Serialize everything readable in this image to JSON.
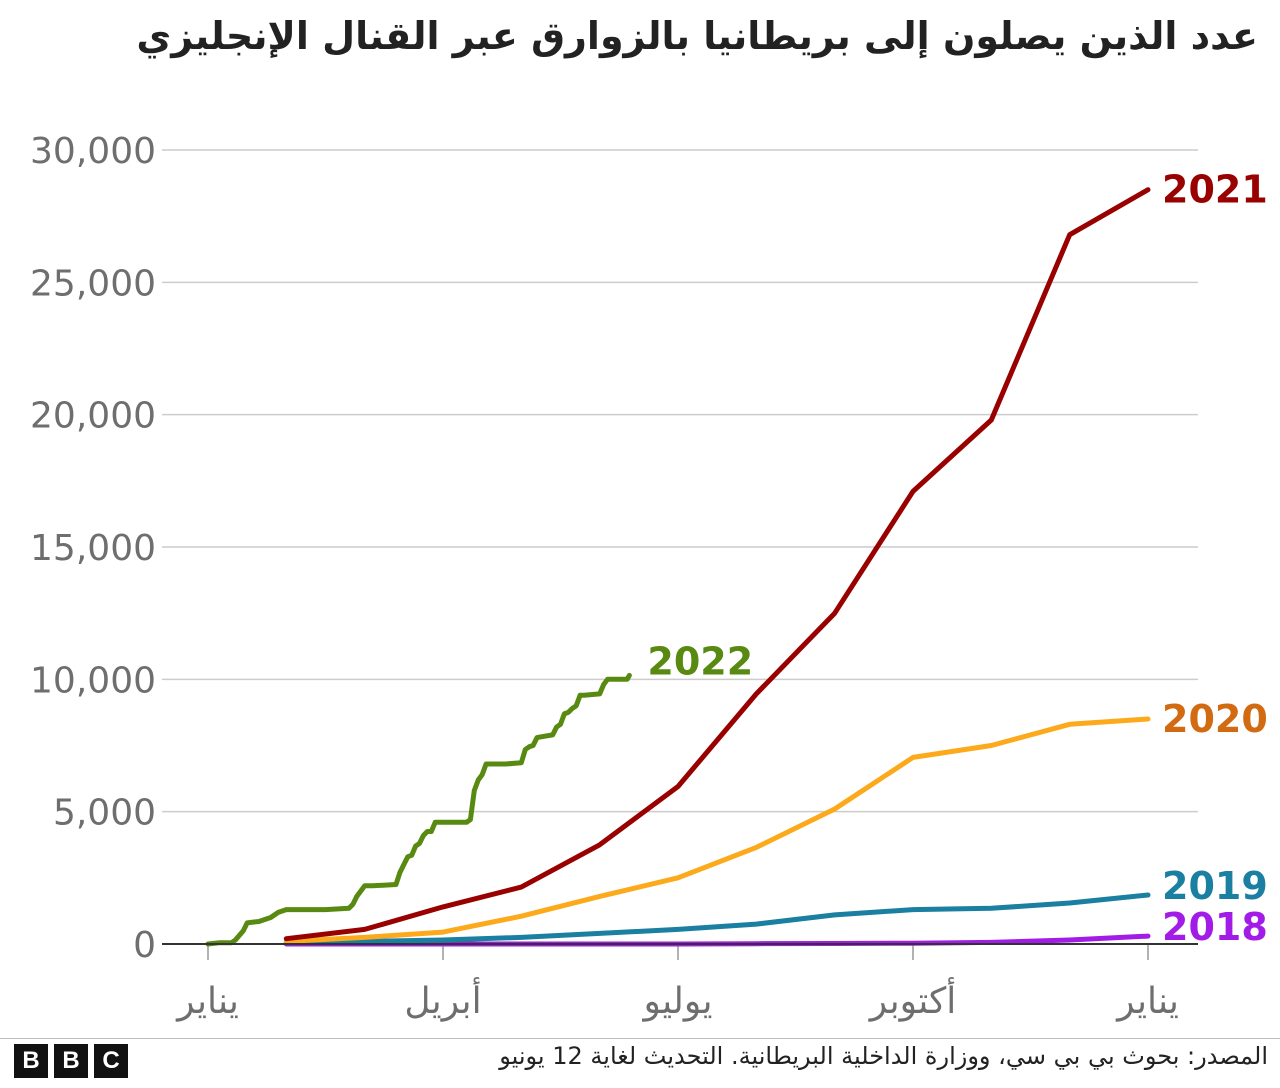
{
  "title": "عدد الذين يصلون إلى بريطانيا بالزوارق عبر القنال الإنجليزي",
  "source": "المصدر: بحوث بي بي سي، ووزارة الداخلية البريطانية. التحديث لغاية 12 يونيو",
  "logo_letters": [
    "B",
    "B",
    "C"
  ],
  "chart_data": {
    "type": "line",
    "title": "عدد الذين يصلون إلى بريطانيا بالزوارق عبر القنال الإنجليزي",
    "xlabel": "",
    "ylabel": "",
    "ylim": [
      0,
      30000
    ],
    "yticks": [
      0,
      5000,
      10000,
      15000,
      20000,
      25000,
      30000
    ],
    "ytick_labels": [
      "0",
      "5,000",
      "10,000",
      "15,000",
      "20,000",
      "25,000",
      "30,000"
    ],
    "xlim": [
      0,
      12
    ],
    "xticks": [
      0,
      3,
      6,
      9,
      12
    ],
    "xtick_labels": [
      "يناير",
      "أبريل",
      "يوليو",
      "أكتوبر",
      "يناير"
    ],
    "x_unit": "months since 1 January",
    "grid": true,
    "series": [
      {
        "name": "2018",
        "color": "#a31be6",
        "x": [
          1,
          2,
          3,
          4,
          5,
          6,
          7,
          8,
          9,
          10,
          11,
          12
        ],
        "y": [
          0,
          0,
          0,
          0,
          0,
          0,
          10,
          20,
          30,
          60,
          150,
          300
        ]
      },
      {
        "name": "2019",
        "color": "#1a7fa0",
        "x": [
          1,
          2,
          3,
          4,
          5,
          6,
          7,
          8,
          9,
          10,
          11,
          12
        ],
        "y": [
          50,
          100,
          150,
          250,
          400,
          550,
          750,
          1100,
          1300,
          1350,
          1550,
          1850
        ]
      },
      {
        "name": "2020",
        "color": "#fcaa1c",
        "x": [
          1,
          2,
          3,
          4,
          5,
          6,
          7,
          8,
          9,
          10,
          11,
          12
        ],
        "y": [
          100,
          250,
          450,
          1050,
          1800,
          2500,
          3650,
          5100,
          7050,
          7500,
          8300,
          8500
        ]
      },
      {
        "name": "2021",
        "color": "#990000",
        "x": [
          1,
          2,
          3,
          4,
          5,
          6,
          7,
          8,
          9,
          10,
          11,
          12
        ],
        "y": [
          200,
          550,
          1400,
          2150,
          3750,
          5950,
          9450,
          12500,
          17100,
          19800,
          26800,
          28500
        ]
      },
      {
        "name": "2022",
        "color": "#588a12",
        "x": [
          0,
          0.15,
          0.3,
          0.35,
          0.45,
          0.5,
          0.65,
          0.8,
          0.9,
          1.0,
          1.1,
          1.5,
          1.8,
          1.85,
          1.9,
          2.0,
          2.05,
          2.1,
          2.4,
          2.45,
          2.5,
          2.55,
          2.6,
          2.65,
          2.7,
          2.75,
          2.8,
          2.85,
          2.9,
          3.3,
          3.35,
          3.4,
          3.45,
          3.5,
          3.55,
          3.6,
          3.65,
          3.7,
          3.75,
          3.8,
          4.0,
          4.05,
          4.1,
          4.15,
          4.2,
          4.3,
          4.4,
          4.45,
          4.5,
          4.55,
          4.6,
          4.65,
          4.7,
          4.75,
          4.8,
          5.0,
          5.05,
          5.1,
          5.3,
          5.35,
          5.38
        ],
        "y": [
          0,
          50,
          50,
          150,
          500,
          800,
          850,
          1000,
          1200,
          1300,
          1300,
          1300,
          1350,
          1500,
          1800,
          2200,
          2200,
          2200,
          2250,
          2700,
          3000,
          3300,
          3350,
          3700,
          3800,
          4100,
          4250,
          4250,
          4600,
          4600,
          4700,
          5800,
          6200,
          6400,
          6800,
          6800,
          6800,
          6800,
          6800,
          6800,
          6850,
          7350,
          7450,
          7500,
          7800,
          7850,
          7900,
          8200,
          8300,
          8700,
          8750,
          8900,
          9000,
          9400,
          9400,
          9450,
          9800,
          10000,
          10000,
          10000,
          10150
        ]
      }
    ],
    "series_labels": [
      {
        "name": "2021",
        "text": "2021",
        "color": "#990000"
      },
      {
        "name": "2022",
        "text": "2022",
        "color": "#588a12"
      },
      {
        "name": "2020",
        "text": "2020",
        "color": "#d26a12"
      },
      {
        "name": "2019",
        "text": "2019",
        "color": "#1a7fa0"
      },
      {
        "name": "2018",
        "text": "2018",
        "color": "#a31be6"
      }
    ]
  }
}
